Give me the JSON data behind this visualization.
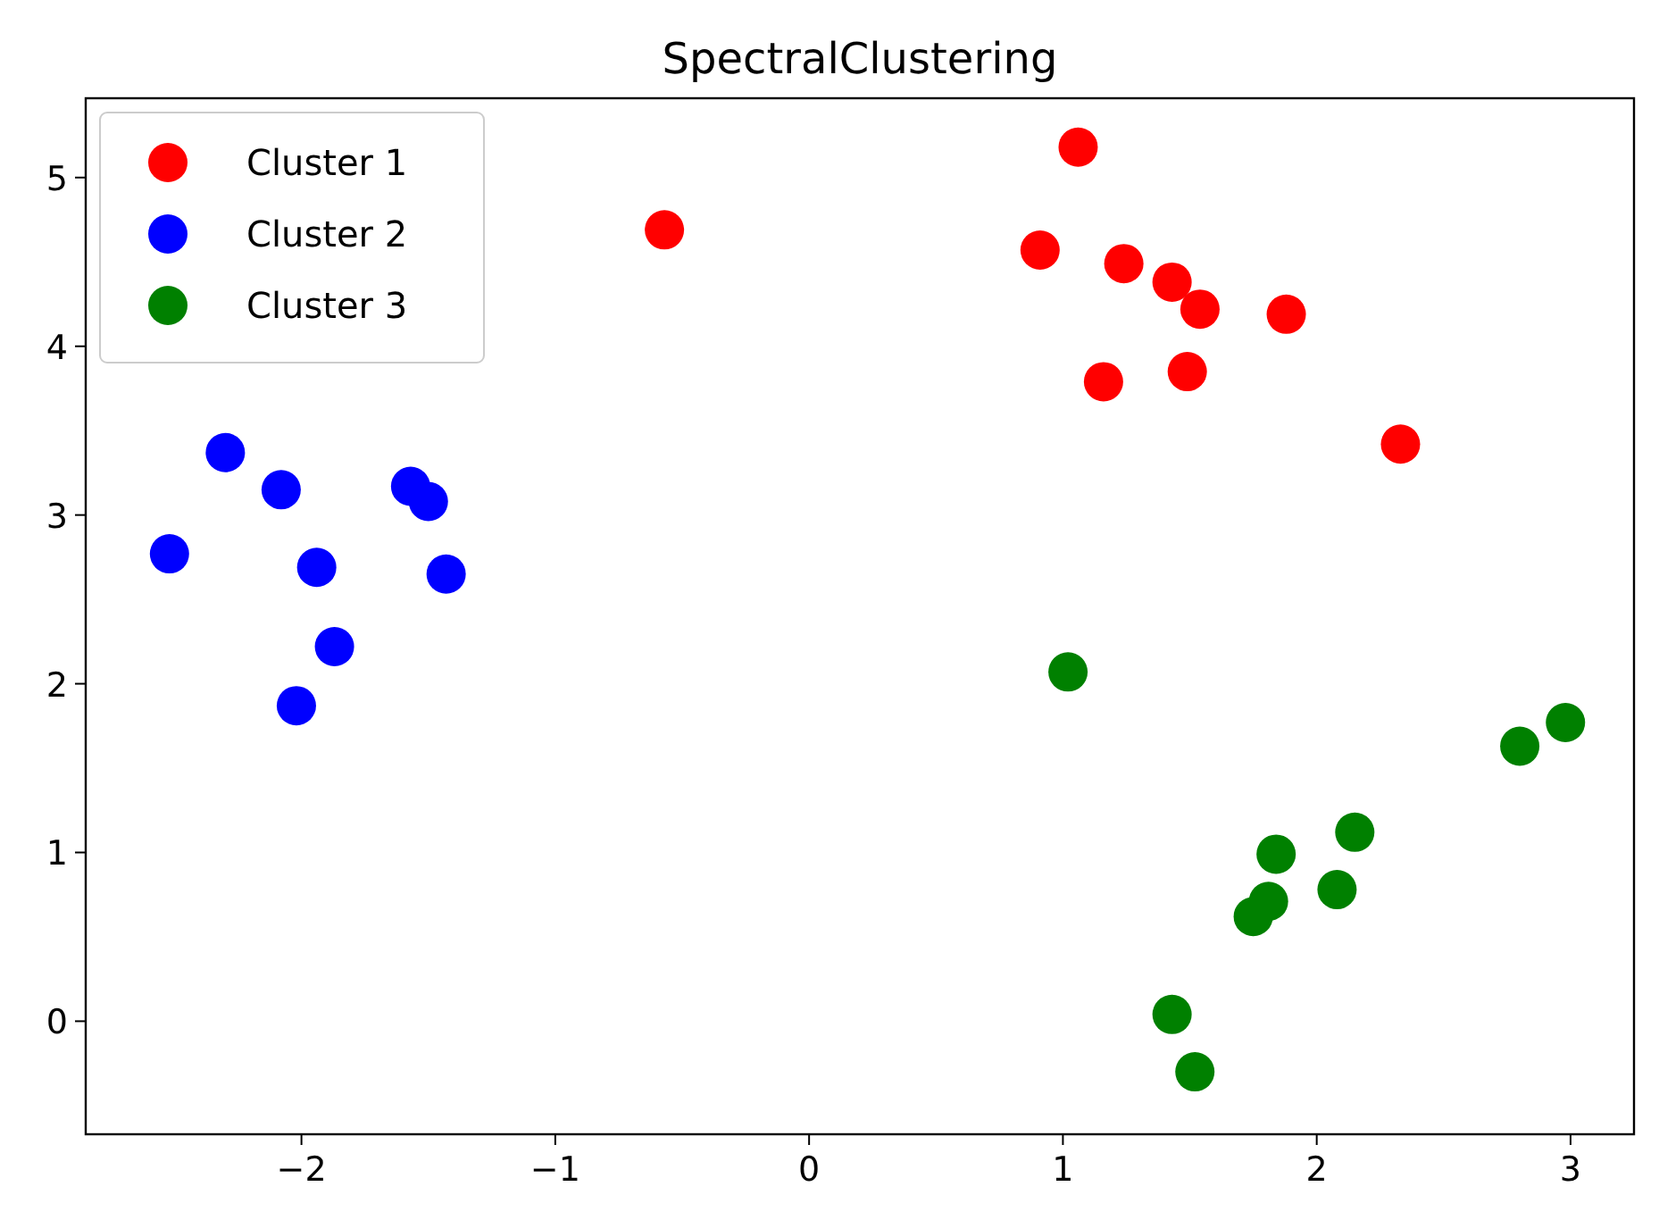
{
  "chart_data": {
    "type": "scatter",
    "title": "SpectralClustering",
    "xlim": [
      -2.85,
      3.25
    ],
    "ylim": [
      -0.67,
      5.47
    ],
    "xticks": [
      -2,
      -1,
      0,
      1,
      2,
      3
    ],
    "yticks": [
      0,
      1,
      2,
      3,
      4,
      5
    ],
    "grid": false,
    "legend": "top left",
    "marker": "circle",
    "series": [
      {
        "name": "Cluster 1",
        "color": "#ff0000",
        "x": [
          1.06,
          -0.57,
          0.91,
          1.24,
          1.43,
          1.54,
          1.88,
          1.16,
          1.49,
          2.33
        ],
        "values": [
          5.18,
          4.69,
          4.57,
          4.49,
          4.38,
          4.22,
          4.19,
          3.79,
          3.85,
          3.42
        ]
      },
      {
        "name": "Cluster 2",
        "color": "#0000ff",
        "x": [
          -2.3,
          -2.08,
          -1.57,
          -1.5,
          -2.52,
          -1.94,
          -1.43,
          -1.87,
          -2.02
        ],
        "values": [
          3.37,
          3.15,
          3.17,
          3.08,
          2.77,
          2.69,
          2.65,
          2.22,
          1.87
        ]
      },
      {
        "name": "Cluster 3",
        "color": "#008000",
        "x": [
          1.02,
          2.8,
          2.98,
          2.15,
          1.84,
          2.08,
          1.81,
          1.75,
          1.43,
          1.52
        ],
        "values": [
          2.07,
          1.63,
          1.77,
          1.12,
          0.99,
          0.78,
          0.71,
          0.62,
          0.04,
          -0.3
        ]
      }
    ]
  }
}
